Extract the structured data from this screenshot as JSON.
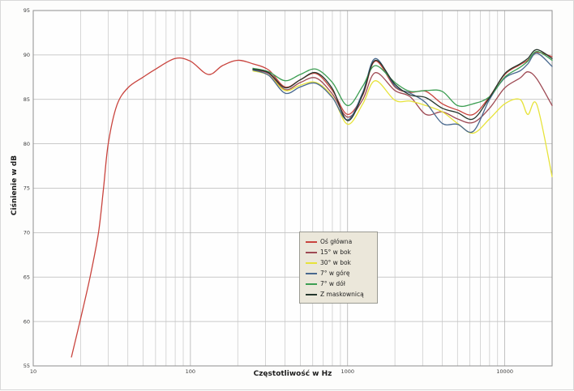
{
  "axes": {
    "x_title": "Częstotliwość w Hz",
    "y_title": "Ciśnienie w dB",
    "x_tick_values": [
      10,
      100,
      1000,
      10000
    ],
    "x_tick_labels": [
      "10",
      "100",
      "1000",
      "10000"
    ],
    "y_tick_values": [
      55,
      60,
      65,
      70,
      75,
      80,
      85,
      90,
      95
    ]
  },
  "colors": {
    "grid_minor": "#c6c6c6",
    "grid_decade": "#a9a9a9",
    "plot_border": "#8f8f8f",
    "plot_background": "#fefefe",
    "legend_background": "#ebe7da"
  },
  "chart_data": {
    "type": "line",
    "title": "",
    "xlabel": "Częstotliwość w Hz",
    "ylabel": "Ciśnienie w dB",
    "x_scale": "log",
    "xlim": [
      10,
      20000
    ],
    "ylim": [
      55,
      95
    ],
    "grid": true,
    "legend_position": "center",
    "x": [
      17.5,
      20,
      23,
      26,
      28,
      30,
      34,
      40,
      50,
      60,
      80,
      100,
      130,
      160,
      200,
      250,
      315,
      400,
      500,
      630,
      800,
      1000,
      1250,
      1500,
      2000,
      2500,
      3150,
      4000,
      5000,
      6300,
      8000,
      10000,
      12500,
      14000,
      16000,
      20000
    ],
    "series": [
      {
        "name": "Oś główna",
        "color": "#c9443e",
        "values": [
          56.0,
          60.3,
          65.0,
          70.0,
          75.0,
          80.0,
          84.3,
          86.3,
          87.5,
          88.4,
          89.6,
          89.3,
          87.8,
          88.8,
          89.4,
          89.0,
          88.3,
          86.4,
          87.2,
          87.9,
          86.0,
          83.3,
          85.5,
          89.3,
          86.4,
          85.8,
          85.9,
          84.5,
          83.8,
          83.3,
          85.3,
          87.8,
          88.9,
          89.4,
          90.3,
          89.8
        ]
      },
      {
        "name": "15° w bok",
        "color": "#9e4a54",
        "values": [
          null,
          null,
          null,
          null,
          null,
          null,
          null,
          null,
          null,
          null,
          null,
          null,
          null,
          null,
          null,
          88.3,
          87.9,
          86.1,
          86.9,
          87.4,
          85.6,
          83.0,
          85.0,
          88.0,
          86.0,
          85.3,
          83.3,
          83.6,
          82.8,
          82.4,
          84.0,
          86.3,
          87.4,
          88.1,
          87.3,
          84.3
        ]
      },
      {
        "name": "30° w bok",
        "color": "#e7e33a",
        "values": [
          null,
          null,
          null,
          null,
          null,
          null,
          null,
          null,
          null,
          null,
          null,
          null,
          null,
          null,
          null,
          88.2,
          87.7,
          86.0,
          86.6,
          86.9,
          85.3,
          82.2,
          84.5,
          87.1,
          84.9,
          84.8,
          84.3,
          83.6,
          82.3,
          81.2,
          82.8,
          84.5,
          85.0,
          83.3,
          84.4,
          76.3
        ]
      },
      {
        "name": "7° w górę",
        "color": "#48688e",
        "values": [
          null,
          null,
          null,
          null,
          null,
          null,
          null,
          null,
          null,
          null,
          null,
          null,
          null,
          null,
          null,
          88.3,
          87.7,
          85.7,
          86.4,
          86.8,
          85.2,
          82.7,
          85.8,
          89.6,
          86.5,
          85.7,
          84.6,
          82.3,
          82.2,
          81.4,
          85.0,
          87.4,
          88.2,
          89.0,
          90.2,
          88.7
        ]
      },
      {
        "name": "7° w dół",
        "color": "#3c9e52",
        "values": [
          null,
          null,
          null,
          null,
          null,
          null,
          null,
          null,
          null,
          null,
          null,
          null,
          null,
          null,
          null,
          88.5,
          88.1,
          87.1,
          87.8,
          88.4,
          86.9,
          84.3,
          86.5,
          88.8,
          86.9,
          85.9,
          86.0,
          85.9,
          84.3,
          84.5,
          85.3,
          87.5,
          88.6,
          89.3,
          90.4,
          89.4
        ]
      },
      {
        "name": "Z maskownicą",
        "color": "#25372d",
        "values": [
          null,
          null,
          null,
          null,
          null,
          null,
          null,
          null,
          null,
          null,
          null,
          null,
          null,
          null,
          null,
          88.4,
          88.0,
          86.3,
          87.2,
          88.0,
          86.2,
          82.6,
          85.6,
          89.4,
          86.7,
          85.5,
          85.2,
          84.0,
          83.5,
          82.8,
          85.2,
          87.9,
          89.0,
          89.6,
          90.6,
          89.6
        ]
      }
    ]
  }
}
